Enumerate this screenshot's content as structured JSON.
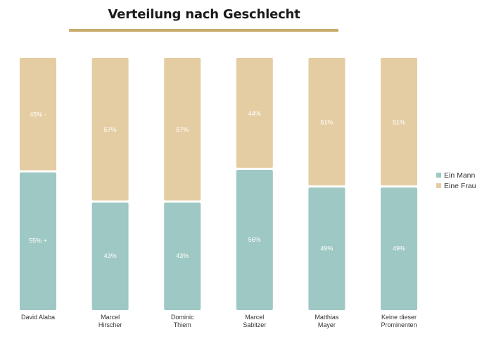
{
  "chart_data": {
    "type": "bar",
    "stacked": true,
    "title": "Verteilung nach Geschlecht",
    "categories": [
      "David Alaba",
      "Marcel Hirscher",
      "Dominic Thiem",
      "Marcel Sabitzer",
      "Matthias Mayer",
      "Keine dieser Prominenten"
    ],
    "category_lines": [
      [
        "David Alaba"
      ],
      [
        "Marcel",
        "Hirscher"
      ],
      [
        "Dominic",
        "Thiem"
      ],
      [
        "Marcel",
        "Sabitzer"
      ],
      [
        "Matthias",
        "Mayer"
      ],
      [
        "Keine dieser",
        "Prominenten"
      ]
    ],
    "series": [
      {
        "name": "Ein Mann",
        "values": [
          55,
          43,
          43,
          56,
          49,
          49
        ],
        "labels": [
          "55% +",
          "43%",
          "43%",
          "56%",
          "49%",
          "49%"
        ],
        "color": "#9ec8c3"
      },
      {
        "name": "Eine Frau",
        "values": [
          45,
          57,
          57,
          44,
          51,
          51
        ],
        "labels": [
          "45% -",
          "57%",
          "57%",
          "44%",
          "51%",
          "51%"
        ],
        "color": "#e5cda3"
      }
    ],
    "ylim": [
      0,
      100
    ],
    "legend_position": "right",
    "grid": false
  }
}
